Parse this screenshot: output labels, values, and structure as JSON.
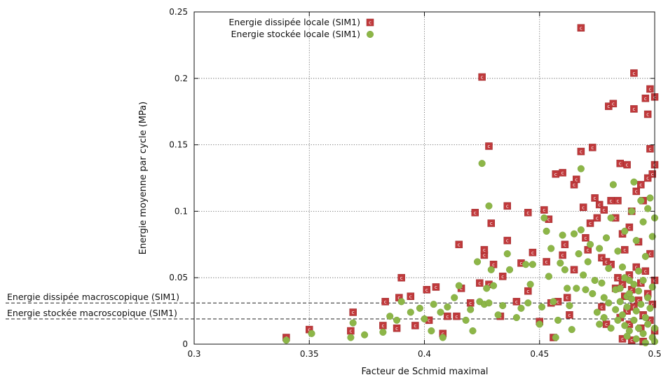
{
  "chart_data": {
    "type": "scatter",
    "xlabel": "Facteur de Schmid maximal",
    "ylabel": "Energie moyenne par cycle (MPa)",
    "xlim": [
      0.3,
      0.5
    ],
    "ylim": [
      0,
      0.25
    ],
    "x_ticks": [
      "0.3",
      "0.35",
      "0.4",
      "0.45",
      "0.5"
    ],
    "y_ticks": [
      "0",
      "0.05",
      "0.1",
      "0.15",
      "0.2",
      "0.25"
    ],
    "grid": true,
    "legend_position": "top-left",
    "reference_lines": [
      {
        "label": "Energie dissipée macroscopique (SIM1)",
        "y": 0.031
      },
      {
        "label": "Energie stockée macroscopique (SIM1)",
        "y": 0.019
      }
    ],
    "series": [
      {
        "name": "Energie dissipée locale (SIM1)",
        "marker": "square",
        "color": "#c0393b",
        "points": [
          [
            0.34,
            0.005
          ],
          [
            0.35,
            0.011
          ],
          [
            0.368,
            0.01
          ],
          [
            0.369,
            0.024
          ],
          [
            0.382,
            0.014
          ],
          [
            0.383,
            0.032
          ],
          [
            0.388,
            0.012
          ],
          [
            0.389,
            0.035
          ],
          [
            0.39,
            0.05
          ],
          [
            0.394,
            0.036
          ],
          [
            0.396,
            0.014
          ],
          [
            0.401,
            0.041
          ],
          [
            0.402,
            0.018
          ],
          [
            0.405,
            0.043
          ],
          [
            0.408,
            0.008
          ],
          [
            0.41,
            0.021
          ],
          [
            0.414,
            0.021
          ],
          [
            0.415,
            0.075
          ],
          [
            0.416,
            0.042
          ],
          [
            0.42,
            0.031
          ],
          [
            0.422,
            0.099
          ],
          [
            0.424,
            0.046
          ],
          [
            0.425,
            0.201
          ],
          [
            0.426,
            0.067
          ],
          [
            0.426,
            0.071
          ],
          [
            0.428,
            0.149
          ],
          [
            0.428,
            0.045
          ],
          [
            0.429,
            0.091
          ],
          [
            0.43,
            0.06
          ],
          [
            0.433,
            0.021
          ],
          [
            0.434,
            0.051
          ],
          [
            0.436,
            0.104
          ],
          [
            0.436,
            0.078
          ],
          [
            0.44,
            0.032
          ],
          [
            0.442,
            0.061
          ],
          [
            0.445,
            0.099
          ],
          [
            0.445,
            0.04
          ],
          [
            0.447,
            0.069
          ],
          [
            0.45,
            0.017
          ],
          [
            0.452,
            0.101
          ],
          [
            0.453,
            0.062
          ],
          [
            0.454,
            0.094
          ],
          [
            0.455,
            0.031
          ],
          [
            0.456,
            0.005
          ],
          [
            0.457,
            0.128
          ],
          [
            0.458,
            0.032
          ],
          [
            0.46,
            0.129
          ],
          [
            0.46,
            0.067
          ],
          [
            0.461,
            0.075
          ],
          [
            0.462,
            0.035
          ],
          [
            0.463,
            0.022
          ],
          [
            0.465,
            0.12
          ],
          [
            0.465,
            0.056
          ],
          [
            0.466,
            0.124
          ],
          [
            0.468,
            0.238
          ],
          [
            0.468,
            0.145
          ],
          [
            0.469,
            0.103
          ],
          [
            0.47,
            0.08
          ],
          [
            0.471,
            0.071
          ],
          [
            0.472,
            0.091
          ],
          [
            0.473,
            0.148
          ],
          [
            0.474,
            0.11
          ],
          [
            0.475,
            0.095
          ],
          [
            0.476,
            0.105
          ],
          [
            0.477,
            0.065
          ],
          [
            0.478,
            0.101
          ],
          [
            0.479,
            0.062
          ],
          [
            0.48,
            0.179
          ],
          [
            0.481,
            0.108
          ],
          [
            0.482,
            0.181
          ],
          [
            0.483,
            0.095
          ],
          [
            0.484,
            0.108
          ],
          [
            0.485,
            0.136
          ],
          [
            0.486,
            0.083
          ],
          [
            0.487,
            0.071
          ],
          [
            0.488,
            0.135
          ],
          [
            0.489,
            0.088
          ],
          [
            0.49,
            0.1
          ],
          [
            0.491,
            0.204
          ],
          [
            0.491,
            0.177
          ],
          [
            0.492,
            0.115
          ],
          [
            0.493,
            0.077
          ],
          [
            0.494,
            0.12
          ],
          [
            0.495,
            0.108
          ],
          [
            0.496,
            0.185
          ],
          [
            0.497,
            0.173
          ],
          [
            0.497,
            0.125
          ],
          [
            0.498,
            0.192
          ],
          [
            0.498,
            0.147
          ],
          [
            0.499,
            0.128
          ],
          [
            0.5,
            0.186
          ],
          [
            0.5,
            0.135
          ],
          [
            0.486,
            0.045
          ],
          [
            0.487,
            0.036
          ],
          [
            0.488,
            0.025
          ],
          [
            0.489,
            0.052
          ],
          [
            0.49,
            0.041
          ],
          [
            0.491,
            0.028
          ],
          [
            0.492,
            0.058
          ],
          [
            0.493,
            0.033
          ],
          [
            0.494,
            0.046
          ],
          [
            0.495,
            0.022
          ],
          [
            0.496,
            0.055
          ],
          [
            0.497,
            0.038
          ],
          [
            0.498,
            0.068
          ],
          [
            0.499,
            0.03
          ],
          [
            0.5,
            0.048
          ],
          [
            0.484,
            0.05
          ],
          [
            0.485,
            0.02
          ],
          [
            0.489,
            0.015
          ],
          [
            0.494,
            0.012
          ],
          [
            0.498,
            0.018
          ],
          [
            0.5,
            0.01
          ],
          [
            0.486,
            0.004
          ],
          [
            0.49,
            0.003
          ],
          [
            0.495,
            0.002
          ],
          [
            0.481,
            0.06
          ],
          [
            0.483,
            0.042
          ],
          [
            0.479,
            0.015
          ],
          [
            0.477,
            0.028
          ]
        ]
      },
      {
        "name": "Energie stockée locale (SIM1)",
        "marker": "circle",
        "color": "#8db648",
        "points": [
          [
            0.34,
            0.003
          ],
          [
            0.351,
            0.008
          ],
          [
            0.368,
            0.005
          ],
          [
            0.369,
            0.016
          ],
          [
            0.374,
            0.007
          ],
          [
            0.382,
            0.009
          ],
          [
            0.385,
            0.021
          ],
          [
            0.388,
            0.018
          ],
          [
            0.39,
            0.032
          ],
          [
            0.394,
            0.024
          ],
          [
            0.398,
            0.027
          ],
          [
            0.4,
            0.019
          ],
          [
            0.403,
            0.01
          ],
          [
            0.404,
            0.03
          ],
          [
            0.407,
            0.024
          ],
          [
            0.408,
            0.005
          ],
          [
            0.41,
            0.028
          ],
          [
            0.413,
            0.035
          ],
          [
            0.415,
            0.044
          ],
          [
            0.418,
            0.018
          ],
          [
            0.42,
            0.026
          ],
          [
            0.421,
            0.01
          ],
          [
            0.423,
            0.062
          ],
          [
            0.424,
            0.032
          ],
          [
            0.425,
            0.136
          ],
          [
            0.426,
            0.03
          ],
          [
            0.427,
            0.042
          ],
          [
            0.428,
            0.104
          ],
          [
            0.428,
            0.031
          ],
          [
            0.429,
            0.056
          ],
          [
            0.43,
            0.044
          ],
          [
            0.432,
            0.022
          ],
          [
            0.434,
            0.029
          ],
          [
            0.436,
            0.068
          ],
          [
            0.437,
            0.056
          ],
          [
            0.44,
            0.02
          ],
          [
            0.442,
            0.027
          ],
          [
            0.444,
            0.06
          ],
          [
            0.445,
            0.031
          ],
          [
            0.446,
            0.045
          ],
          [
            0.447,
            0.06
          ],
          [
            0.45,
            0.015
          ],
          [
            0.451,
            0.028
          ],
          [
            0.452,
            0.095
          ],
          [
            0.453,
            0.085
          ],
          [
            0.454,
            0.051
          ],
          [
            0.455,
            0.072
          ],
          [
            0.456,
            0.032
          ],
          [
            0.457,
            0.005
          ],
          [
            0.458,
            0.018
          ],
          [
            0.459,
            0.061
          ],
          [
            0.46,
            0.082
          ],
          [
            0.461,
            0.056
          ],
          [
            0.462,
            0.042
          ],
          [
            0.463,
            0.029
          ],
          [
            0.464,
            0.011
          ],
          [
            0.465,
            0.083
          ],
          [
            0.466,
            0.042
          ],
          [
            0.467,
            0.068
          ],
          [
            0.468,
            0.132
          ],
          [
            0.468,
            0.086
          ],
          [
            0.469,
            0.052
          ],
          [
            0.47,
            0.041
          ],
          [
            0.471,
            0.062
          ],
          [
            0.472,
            0.075
          ],
          [
            0.473,
            0.038
          ],
          [
            0.474,
            0.048
          ],
          [
            0.475,
            0.024
          ],
          [
            0.476,
            0.072
          ],
          [
            0.477,
            0.046
          ],
          [
            0.478,
            0.035
          ],
          [
            0.479,
            0.08
          ],
          [
            0.48,
            0.057
          ],
          [
            0.481,
            0.095
          ],
          [
            0.482,
            0.12
          ],
          [
            0.483,
            0.041
          ],
          [
            0.484,
            0.07
          ],
          [
            0.485,
            0.032
          ],
          [
            0.486,
            0.058
          ],
          [
            0.487,
            0.085
          ],
          [
            0.488,
            0.036
          ],
          [
            0.489,
            0.048
          ],
          [
            0.49,
            0.1
          ],
          [
            0.491,
            0.122
          ],
          [
            0.492,
            0.078
          ],
          [
            0.493,
            0.055
          ],
          [
            0.494,
            0.108
          ],
          [
            0.495,
            0.092
          ],
          [
            0.496,
            0.066
          ],
          [
            0.497,
            0.102
          ],
          [
            0.498,
            0.11
          ],
          [
            0.499,
            0.081
          ],
          [
            0.5,
            0.095
          ],
          [
            0.486,
            0.022
          ],
          [
            0.487,
            0.014
          ],
          [
            0.488,
            0.028
          ],
          [
            0.489,
            0.01
          ],
          [
            0.49,
            0.034
          ],
          [
            0.491,
            0.018
          ],
          [
            0.492,
            0.025
          ],
          [
            0.493,
            0.012
          ],
          [
            0.494,
            0.03
          ],
          [
            0.495,
            0.008
          ],
          [
            0.496,
            0.02
          ],
          [
            0.497,
            0.015
          ],
          [
            0.498,
            0.027
          ],
          [
            0.499,
            0.005
          ],
          [
            0.5,
            0.012
          ],
          [
            0.484,
            0.018
          ],
          [
            0.483,
            0.026
          ],
          [
            0.481,
            0.012
          ],
          [
            0.48,
            0.031
          ],
          [
            0.478,
            0.02
          ],
          [
            0.476,
            0.015
          ],
          [
            0.485,
            0.042
          ],
          [
            0.487,
            0.05
          ],
          [
            0.489,
            0.038
          ],
          [
            0.491,
            0.045
          ],
          [
            0.493,
            0.04
          ],
          [
            0.495,
            0.048
          ],
          [
            0.497,
            0.035
          ],
          [
            0.499,
            0.043
          ],
          [
            0.5,
            0.002
          ],
          [
            0.488,
            0.006
          ],
          [
            0.492,
            0.004
          ],
          [
            0.496,
            0.001
          ]
        ]
      }
    ]
  }
}
